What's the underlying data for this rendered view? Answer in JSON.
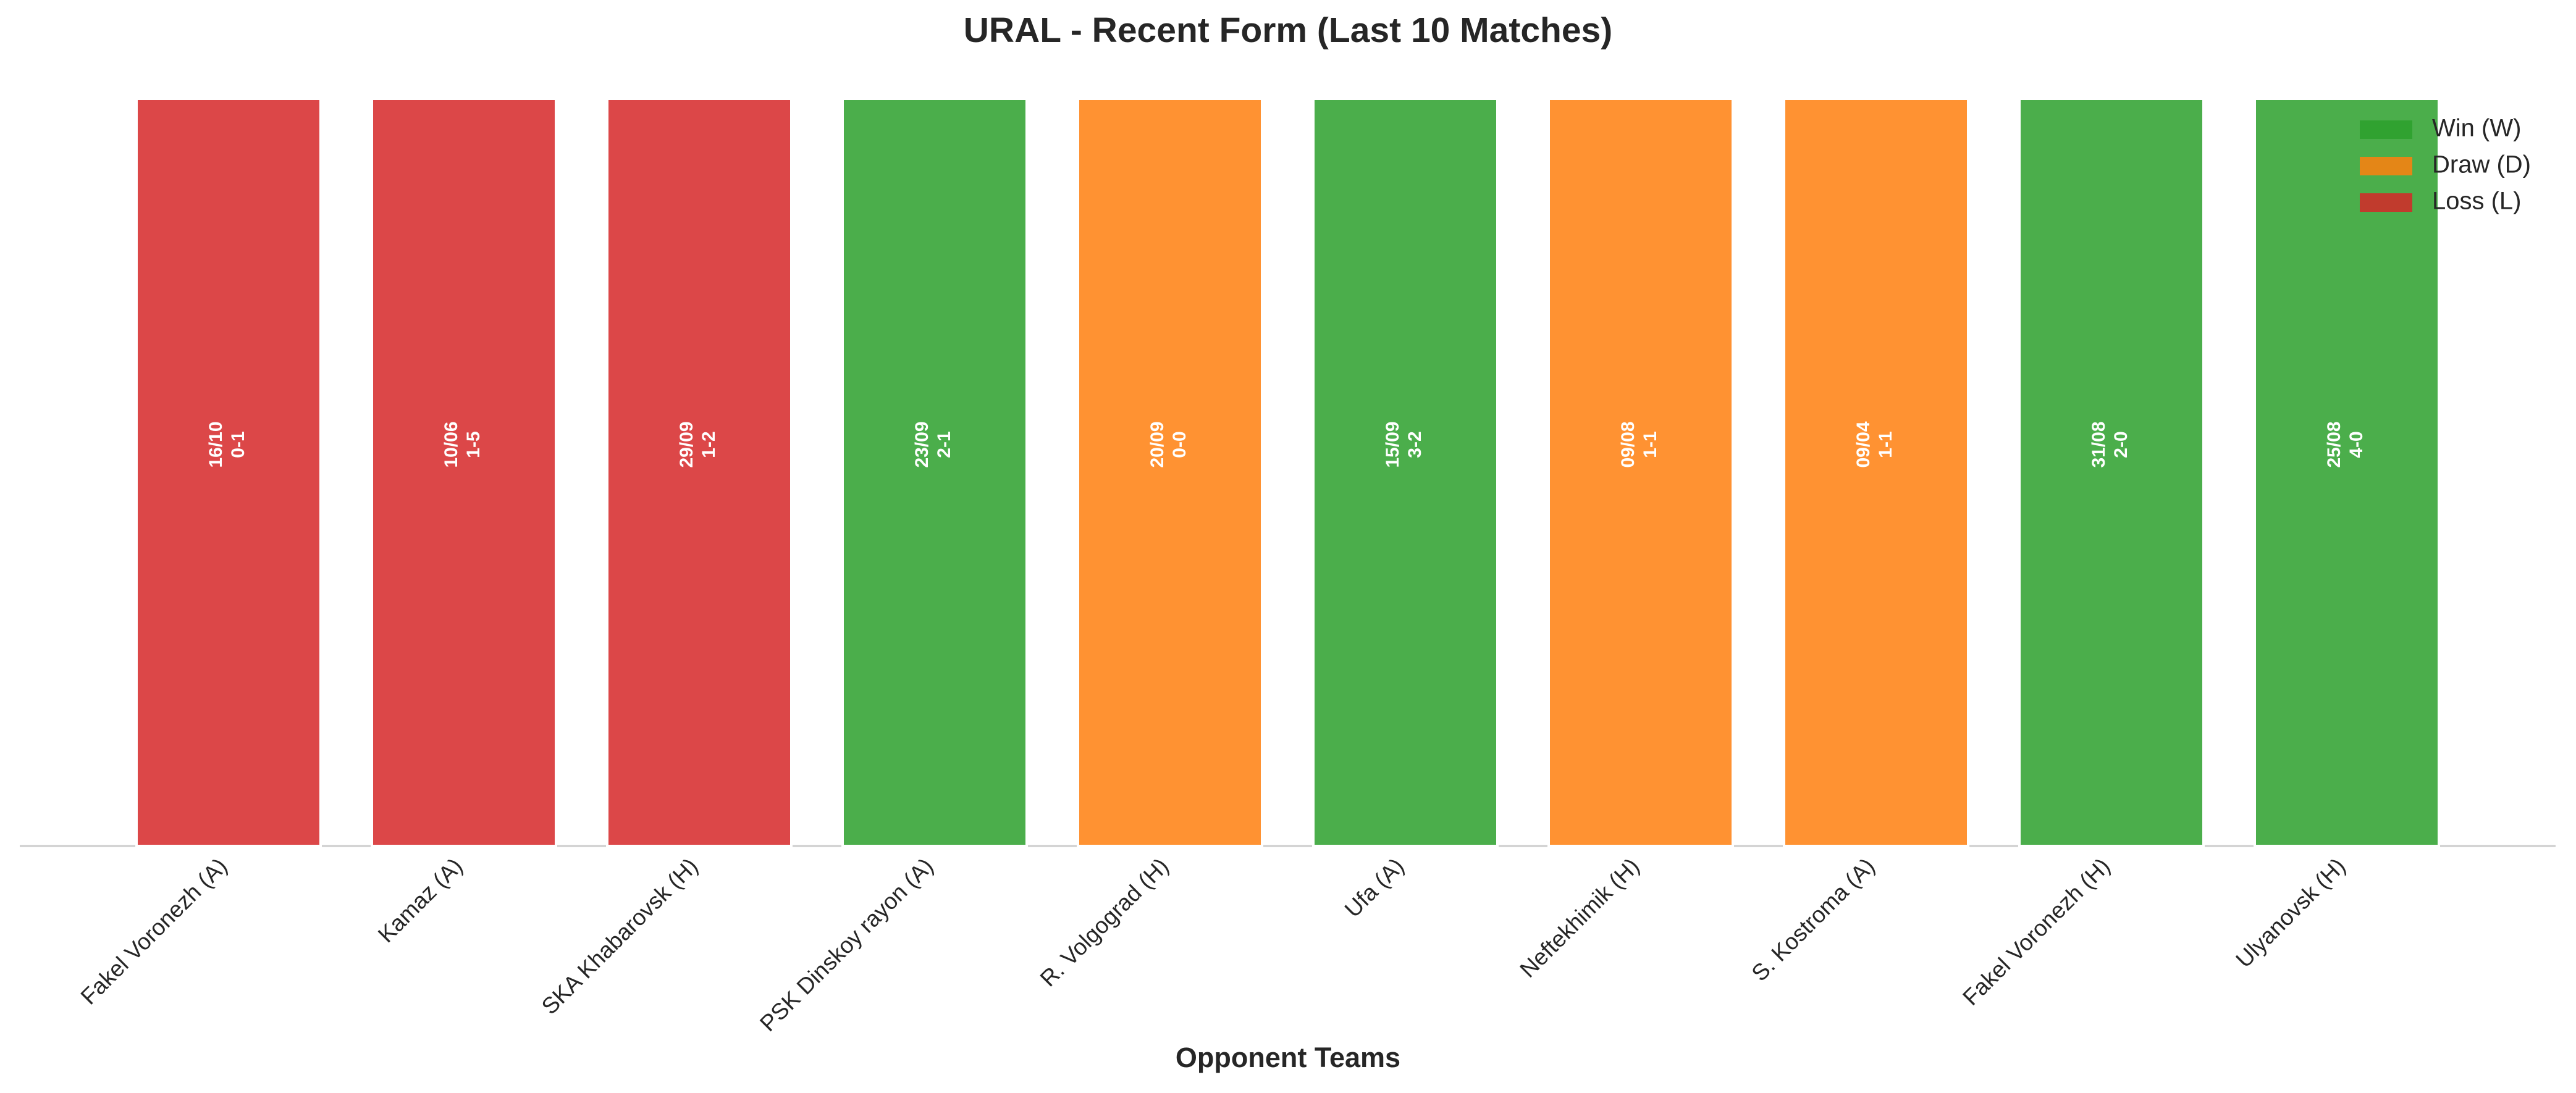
{
  "chart_data": {
    "type": "bar",
    "title": "URAL - Recent Form (Last 10 Matches)",
    "xlabel": "Opponent Teams",
    "categories": [
      "Fakel Voronezh (A)",
      "Kamaz (A)",
      "SKA Khabarovsk (H)",
      "PSK Dinskoy rayon (A)",
      "R. Volgograd (H)",
      "Ufa (A)",
      "Neftekhimik (H)",
      "S. Kostroma (A)",
      "Fakel Voronezh (H)",
      "Ulyanovsk (H)"
    ],
    "values": [
      1,
      1,
      1,
      1,
      1,
      1,
      1,
      1,
      1,
      1
    ],
    "dates": [
      "16/10",
      "10/06",
      "29/09",
      "23/09",
      "20/09",
      "15/09",
      "09/08",
      "09/04",
      "31/08",
      "25/08"
    ],
    "scores": [
      "0-1",
      "1-5",
      "1-2",
      "2-1",
      "0-0",
      "3-2",
      "1-1",
      "1-1",
      "2-0",
      "4-0"
    ],
    "colors": [
      "#d62728",
      "#d62728",
      "#d62728",
      "#2ca02c",
      "#ff7f0e",
      "#2ca02c",
      "#ff7f0e",
      "#ff7f0e",
      "#2ca02c",
      "#2ca02c"
    ],
    "ylim": [
      0,
      1
    ],
    "legend_position": "upper right",
    "legend": [
      {
        "name": "Win (W)",
        "color": "#2ca02c"
      },
      {
        "name": "Draw (D)",
        "color": "#ff7f0e"
      },
      {
        "name": "Loss (L)",
        "color": "#d62728"
      }
    ]
  }
}
